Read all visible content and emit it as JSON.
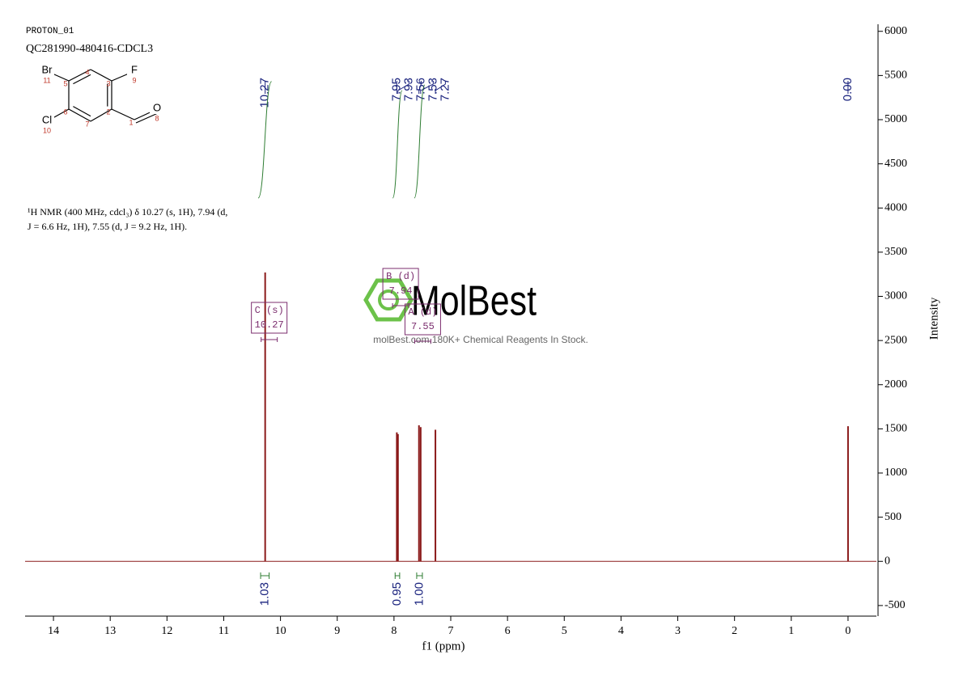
{
  "header": {
    "experiment": "PROTON_01",
    "sample": "QC281990-480416-CDCL3"
  },
  "molecule": {
    "atoms": [
      {
        "number": 1
      },
      {
        "number": 2
      },
      {
        "number": 3
      },
      {
        "number": 4
      },
      {
        "number": 5
      },
      {
        "number": 6
      },
      {
        "number": 7
      },
      {
        "symbol": "O",
        "number": 8
      },
      {
        "symbol": "F",
        "number": 9
      },
      {
        "symbol": "Cl",
        "number": 10
      },
      {
        "symbol": "Br",
        "number": 11
      }
    ]
  },
  "description": [
    "¹H NMR (400 MHz, cdcl₃) δ 10.27 (s, 1H), 7.94 (d,",
    "J = 6.6 Hz, 1H), 7.55 (d, J = 9.2 Hz, 1H)."
  ],
  "watermark": {
    "brand": "MolBest",
    "tagline": "molBest.com,180K+ Chemical Reagents In Stock."
  },
  "chart_data": {
    "type": "spectrum",
    "color": "#8b1a1a",
    "x_label": "f1 (ppm)",
    "y_label": "Intensity",
    "xlim": [
      14.5,
      -0.5
    ],
    "ylim": [
      -620,
      6080
    ],
    "xticks": [
      14,
      13,
      12,
      11,
      10,
      9,
      8,
      7,
      6,
      5,
      4,
      3,
      2,
      1,
      0
    ],
    "yticks": [
      -500,
      0,
      500,
      1000,
      1500,
      2000,
      2500,
      3000,
      3500,
      4000,
      4500,
      5000,
      5500,
      6000
    ],
    "peaks": {
      "x": [
        10.27,
        7.95,
        7.93,
        7.56,
        7.53,
        7.27,
        0.0
      ],
      "values": [
        3270,
        1460,
        1440,
        1540,
        1520,
        1490,
        1530
      ]
    },
    "peak_picks": [
      {
        "value": 10.27,
        "label": "10.27"
      },
      {
        "value": 7.95,
        "label": "7.95"
      },
      {
        "value": 7.93,
        "label": "7.93"
      },
      {
        "value": 7.56,
        "label": "7.56"
      },
      {
        "value": 7.53,
        "label": "7.53"
      },
      {
        "value": 7.27,
        "label": "7.27"
      },
      {
        "value": 0,
        "label": "0.00"
      }
    ],
    "integrals": {
      "ranges": [
        [
          10.35,
          10.2
        ],
        [
          7.98,
          7.9
        ],
        [
          7.6,
          7.5
        ]
      ],
      "values": [
        1.03,
        0.95,
        1.0
      ],
      "value_labels": [
        "1.03",
        "0.95",
        "1.00"
      ]
    },
    "multiplets": [
      {
        "name": "C (s)",
        "shift": 10.27
      },
      {
        "name": "B (d)",
        "shift": 7.94
      },
      {
        "name": "A (d)",
        "shift": 7.55
      }
    ]
  }
}
